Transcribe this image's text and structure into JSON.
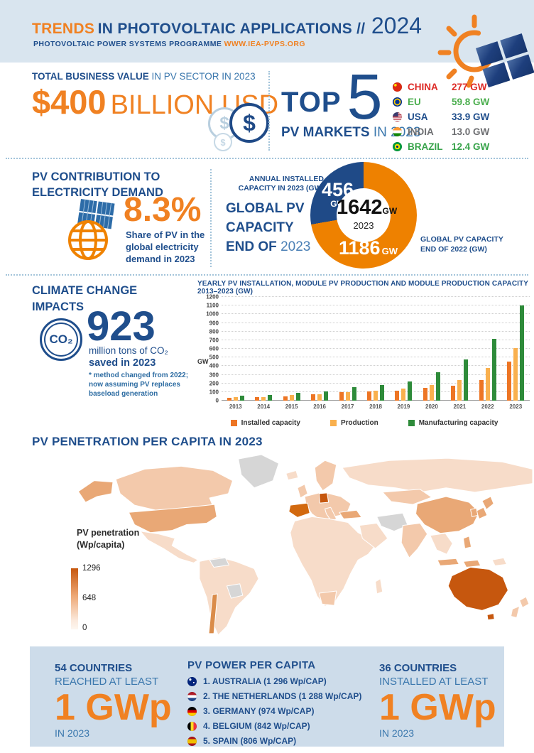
{
  "header": {
    "title_accent": "TRENDS",
    "title_rest": " IN PHOTOVOLTAIC APPLICATIONS //",
    "title_year": "2024",
    "subtitle": "PHOTOVOLTAIC POWER SYSTEMS PROGRAMME ",
    "subtitle_link": "WWW.IEA-PVPS.ORG"
  },
  "business_value": {
    "heading_bold": "TOTAL BUSINESS VALUE",
    "heading_rest": " IN PV SECTOR IN 2023",
    "amount": "$400",
    "amount_unit": "BILLION USD",
    "coin_symbol": "$"
  },
  "top_markets": {
    "top_word": "TOP",
    "big_number": "5",
    "sub_bold": "PV MARKETS",
    "sub_rest": " IN 2023",
    "items": [
      {
        "country": "CHINA",
        "value": "277 GW",
        "color": "#dd2b27",
        "flag": "china"
      },
      {
        "country": "EU",
        "value": "59.8 GW",
        "color": "#4aae4d",
        "flag": "eu"
      },
      {
        "country": "USA",
        "value": "33.9 GW",
        "color": "#1f4e8c",
        "flag": "usa"
      },
      {
        "country": "INDIA",
        "value": "13.0 GW",
        "color": "#6d6e71",
        "flag": "india"
      },
      {
        "country": "BRAZIL",
        "value": "12.4 GW",
        "color": "#37a34a",
        "flag": "brazil"
      }
    ]
  },
  "pv_contribution": {
    "heading_line1": "PV CONTRIBUTION TO",
    "heading_line2": "ELECTRICITY DEMAND",
    "percent": "8.3%",
    "caption": "Share of PV in the global electricity demand in 2023"
  },
  "global_capacity": {
    "label_line1": "GLOBAL PV",
    "label_line2": "CAPACITY",
    "label_line3_bold": "END OF ",
    "label_line3_year": "2023",
    "annual_label_line1": "ANNUAL INSTALLED",
    "annual_label_line2": "CAPACITY IN 2023 (GW)",
    "blue_value": "456",
    "blue_unit": "GW",
    "orange_value": "1186",
    "orange_unit": "GW",
    "center_value": "1642",
    "center_unit": "GW",
    "center_year": "2023",
    "right_label_line1": "GLOBAL PV CAPACITY",
    "right_label_line2": "END OF 2022 (GW)"
  },
  "climate": {
    "heading_line1": "CLIMATE CHANGE",
    "heading_line2": "IMPACTS",
    "co2_icon_text": "CO₂",
    "value": "923",
    "caption_1": "million tons of CO₂",
    "caption_2": "saved in 2023",
    "footnote": "* method changed from 2022; now assuming PV replaces baseload generation"
  },
  "map_section": {
    "heading": "PV PENETRATION PER CAPITA IN 2023",
    "legend_title_line1": "PV penetration",
    "legend_title_line2": "(Wp/capita)",
    "legend_max": "1296",
    "legend_mid": "648",
    "legend_min": "0",
    "palette": {
      "no_data": "#d6d6d6",
      "low": "#f7dcc9",
      "medium": "#e9a876",
      "high": "#d2690f",
      "max": "#c6570e"
    }
  },
  "footer_stats": {
    "left": {
      "line1": "54 COUNTRIES",
      "line2": "REACHED AT LEAST",
      "big": "1 GWp",
      "line3": "IN 2023"
    },
    "right": {
      "line1": "36 COUNTRIES",
      "line2": "INSTALLED AT LEAST",
      "big": "1 GWp",
      "line3": "IN 2023"
    },
    "per_capita": {
      "heading": "PV POWER PER CAPITA",
      "items": [
        {
          "label": "1. AUSTRALIA (1 296 Wp/CAP)",
          "flag": "australia"
        },
        {
          "label": "2. THE NETHERLANDS (1 288 Wp/CAP)",
          "flag": "netherlands"
        },
        {
          "label": "3. GERMANY (974 Wp/CAP)",
          "flag": "germany"
        },
        {
          "label": "4. BELGIUM (842 Wp/CAP)",
          "flag": "belgium"
        },
        {
          "label": "5. SPAIN  (806 Wp/CAP)",
          "flag": "spain"
        }
      ]
    }
  },
  "chart_data": [
    {
      "type": "pie",
      "title": "GLOBAL PV CAPACITY END OF 2023",
      "slices": [
        {
          "label": "ANNUAL INSTALLED CAPACITY IN 2023 (GW)",
          "value": 456,
          "color": "#1f4a87"
        },
        {
          "label": "GLOBAL PV CAPACITY END OF 2022 (GW)",
          "value": 1186,
          "color": "#ee8100"
        }
      ],
      "center": {
        "value": 1642,
        "unit": "GW",
        "year": "2023"
      },
      "donut": true
    },
    {
      "type": "bar",
      "title": "YEARLY PV INSTALLATION, MODULE PV PRODUCTION AND MODULE PRODUCTION CAPACITY 2013–2023 (GW)",
      "ylabel": "GW",
      "ylim": [
        0,
        1200
      ],
      "ytick_step": 100,
      "grid": "dotted-horizontal",
      "legend_position": "bottom",
      "categories": [
        "2013",
        "2014",
        "2015",
        "2016",
        "2017",
        "2018",
        "2019",
        "2020",
        "2021",
        "2022",
        "2023"
      ],
      "series": [
        {
          "name": "Installed capacity",
          "color": "#ed7524",
          "values": [
            35,
            40,
            52,
            75,
            100,
            103,
            118,
            145,
            175,
            240,
            456
          ]
        },
        {
          "name": "Production",
          "color": "#f9b04e",
          "values": [
            40,
            45,
            64,
            75,
            100,
            115,
            140,
            178,
            242,
            380,
            610
          ]
        },
        {
          "name": "Manufacturing capacity",
          "color": "#2e8b3a",
          "values": [
            58,
            64,
            92,
            105,
            155,
            185,
            220,
            330,
            480,
            715,
            1100
          ]
        }
      ]
    }
  ]
}
